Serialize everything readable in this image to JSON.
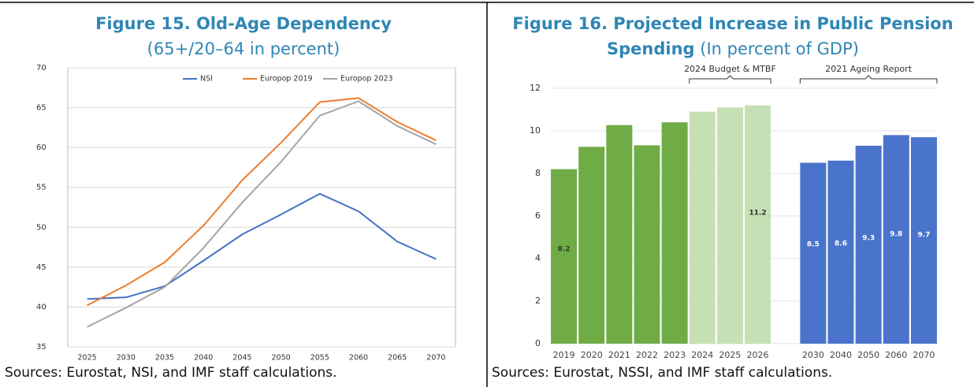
{
  "chart_data": [
    {
      "type": "line",
      "title": "Figure 15. Old-Age Dependency",
      "subtitle": "(65+/20–64 in percent)",
      "categories": [
        "2025",
        "2030",
        "2035",
        "2040",
        "2045",
        "2050",
        "2055",
        "2060",
        "2065",
        "2070"
      ],
      "series": [
        {
          "name": "NSI",
          "color": "#4472c4",
          "values": [
            41.0,
            41.2,
            42.6,
            45.8,
            49.1,
            51.6,
            54.2,
            52.0,
            48.2,
            46.0
          ]
        },
        {
          "name": "Europop 2019",
          "color": "#ed7d31",
          "values": [
            40.2,
            42.7,
            45.6,
            50.2,
            55.9,
            60.6,
            65.7,
            66.2,
            63.2,
            60.9
          ]
        },
        {
          "name": "Europop 2023",
          "color": "#a5a5a5",
          "values": [
            37.5,
            39.9,
            42.5,
            47.4,
            53.1,
            58.2,
            64.0,
            65.8,
            62.7,
            60.4
          ]
        }
      ],
      "ylim": [
        35,
        70
      ],
      "yticks": [
        35,
        40,
        45,
        50,
        55,
        60,
        65,
        70
      ],
      "grid": true,
      "legend": "top",
      "source": "Sources: Eurostat, NSI, and IMF staff calculations."
    },
    {
      "type": "bar",
      "title": "Figure 16. Projected Increase in Public Pension Spending",
      "subtitle": "(In percent of GDP)",
      "categories": [
        "2019",
        "2020",
        "2021",
        "2022",
        "2023",
        "2024",
        "2025",
        "2026",
        null,
        "2030",
        "2040",
        "2050",
        "2060",
        "2070"
      ],
      "values": [
        8.2,
        9.25,
        10.27,
        9.32,
        10.4,
        10.9,
        11.1,
        11.2,
        null,
        8.5,
        8.6,
        9.3,
        9.8,
        9.7
      ],
      "value_labels": [
        "8.2",
        null,
        null,
        null,
        null,
        null,
        null,
        "11.2",
        null,
        "8.5",
        "8.6",
        "9.3",
        "9.8",
        "9.7"
      ],
      "colors": [
        "#6fac46",
        "#6fac46",
        "#6fac46",
        "#6fac46",
        "#6fac46",
        "#c5e0b4",
        "#c5e0b4",
        "#c5e0b4",
        null,
        "#4a74cc",
        "#4a74cc",
        "#4a74cc",
        "#4a74cc",
        "#4a74cc"
      ],
      "ylim": [
        0,
        12
      ],
      "yticks": [
        0,
        2,
        4,
        6,
        8,
        10,
        12
      ],
      "grid": true,
      "annotations": [
        "2024 Budget & MTBF",
        "2021 Ageing Report"
      ],
      "source": "Sources: Eurostat, NSSI, and IMF staff calculations."
    }
  ]
}
